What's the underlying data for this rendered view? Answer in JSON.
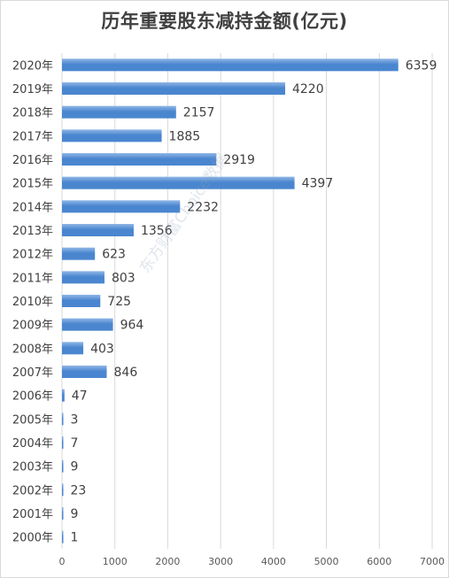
{
  "chart_data": {
    "type": "bar",
    "orientation": "horizontal",
    "title": "历年重要股东减持金额(亿元)",
    "categories": [
      "2020年",
      "2019年",
      "2018年",
      "2017年",
      "2016年",
      "2015年",
      "2014年",
      "2013年",
      "2012年",
      "2011年",
      "2010年",
      "2009年",
      "2008年",
      "2007年",
      "2006年",
      "2005年",
      "2004年",
      "2003年",
      "2002年",
      "2001年",
      "2000年"
    ],
    "values": [
      6359,
      4220,
      2157,
      1885,
      2919,
      4397,
      2232,
      1356,
      623,
      803,
      725,
      964,
      403,
      846,
      47,
      3,
      7,
      9,
      23,
      9,
      1
    ],
    "xlim": [
      0,
      7000
    ],
    "xticks": [
      0,
      1000,
      2000,
      3000,
      4000,
      5000,
      6000,
      7000
    ],
    "grid": "vertical",
    "legend": "none",
    "watermark": "东方财富Choice数据",
    "colors": {
      "bar": "#4a86cf",
      "bar_light": "#8fb6e6",
      "grid": "#d9d9d9",
      "text": "#404040"
    }
  }
}
